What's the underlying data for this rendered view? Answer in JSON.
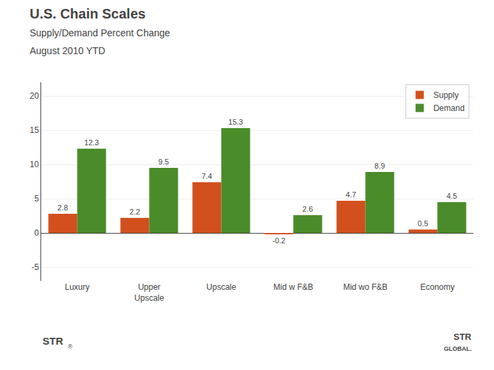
{
  "chart_data": {
    "type": "bar",
    "title": "U.S. Chain Scales",
    "subtitle": [
      "Supply/Demand Percent Change",
      "August 2010 YTD"
    ],
    "categories": [
      "Luxury",
      "Upper\nUpscale",
      "Upscale",
      "Mid w F&B",
      "Mid wo F&B",
      "Economy"
    ],
    "series": [
      {
        "name": "Supply",
        "color": "#D2501E",
        "values": [
          2.8,
          2.2,
          7.4,
          -0.2,
          4.7,
          0.5
        ]
      },
      {
        "name": "Demand",
        "color": "#4A8C2A",
        "values": [
          12.3,
          9.5,
          15.3,
          2.6,
          8.9,
          4.5
        ]
      }
    ],
    "ylim": [
      -7,
      22
    ],
    "yticks": [
      -5,
      0,
      5,
      10,
      15,
      20
    ],
    "grid": true,
    "legend": "upper right",
    "data_labels": true,
    "annotations": [
      "STR",
      "®",
      "STR",
      "GLOBAL."
    ]
  }
}
